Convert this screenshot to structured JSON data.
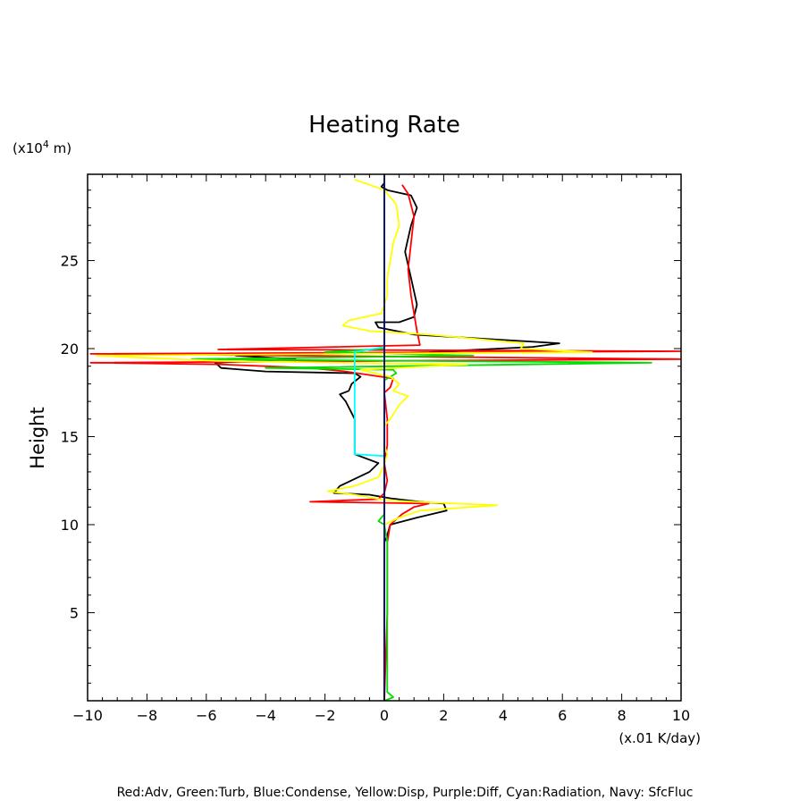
{
  "chart_data": {
    "type": "line",
    "title": "Heating Rate",
    "ylabel": "Height",
    "y_unit_prefix": "(x10",
    "y_unit_exp": "4",
    "y_unit_suffix": " m)",
    "x_unit": "(x.01 K/day)",
    "xlim": [
      -10,
      10
    ],
    "ylim": [
      0,
      29.9
    ],
    "x_ticks": [
      -10,
      -8,
      -6,
      -4,
      -2,
      0,
      2,
      4,
      6,
      8,
      10
    ],
    "x_tick_labels": [
      "−10",
      "−8",
      "−6",
      "−4",
      "−2",
      "0",
      "2",
      "4",
      "6",
      "8",
      "10"
    ],
    "y_ticks": [
      5,
      10,
      15,
      20,
      25
    ],
    "y_tick_labels": [
      "5",
      "10",
      "15",
      "20",
      "25"
    ],
    "legend_text": "Red:Adv, Green:Turb, Blue:Condense, Yellow:Disp, Purple:Diff, Cyan:Radiation, Navy: SfcFluc",
    "series": [
      {
        "color": "#000000",
        "points": [
          [
            0,
            0
          ],
          [
            0,
            9
          ],
          [
            0.1,
            9.4
          ],
          [
            0.2,
            10
          ],
          [
            1.1,
            10.4
          ],
          [
            2.1,
            10.8
          ],
          [
            2,
            11.2
          ],
          [
            1.2,
            11.3
          ],
          [
            0.2,
            11.5
          ],
          [
            -0.5,
            11.7
          ],
          [
            -1.7,
            11.8
          ],
          [
            -1.5,
            12.2
          ],
          [
            -0.5,
            13
          ],
          [
            -0.2,
            13.5
          ],
          [
            -1,
            14
          ],
          [
            -1,
            15
          ],
          [
            -1,
            16
          ],
          [
            -1.3,
            17
          ],
          [
            -1.5,
            17.4
          ],
          [
            -1.2,
            17.6
          ],
          [
            -1.1,
            18
          ],
          [
            -0.8,
            18.4
          ],
          [
            -1,
            18.6
          ],
          [
            -4,
            18.7
          ],
          [
            -5.5,
            18.9
          ],
          [
            -5.7,
            19.2
          ],
          [
            -3,
            19.4
          ],
          [
            -5,
            19.6
          ],
          [
            1.5,
            19.8
          ],
          [
            5,
            20.1
          ],
          [
            5.9,
            20.3
          ],
          [
            1,
            20.8
          ],
          [
            -0.2,
            21.2
          ],
          [
            -0.3,
            21.5
          ],
          [
            0.5,
            21.5
          ],
          [
            1,
            21.8
          ],
          [
            1.1,
            22.5
          ],
          [
            0.9,
            24
          ],
          [
            0.7,
            25.5
          ],
          [
            0.9,
            27
          ],
          [
            1.1,
            28
          ],
          [
            0.9,
            28.7
          ],
          [
            0.1,
            29
          ],
          [
            -0.1,
            29.2
          ],
          [
            0,
            29.4
          ]
        ]
      },
      {
        "color": "#ff0000",
        "points": [
          [
            0,
            0
          ],
          [
            0.1,
            5
          ],
          [
            0.1,
            9
          ],
          [
            0.2,
            10
          ],
          [
            0.6,
            10.6
          ],
          [
            1,
            11
          ],
          [
            1.5,
            11.2
          ],
          [
            -2.5,
            11.3
          ],
          [
            -0.2,
            11.45
          ],
          [
            0,
            11.8
          ],
          [
            0.1,
            12.5
          ],
          [
            0,
            13.5
          ],
          [
            0.1,
            14.5
          ],
          [
            0.1,
            16
          ],
          [
            0,
            17.5
          ],
          [
            0.2,
            17.8
          ],
          [
            0.3,
            18.3
          ],
          [
            -1.3,
            18.7
          ],
          [
            -2.5,
            18.9
          ],
          [
            -5.5,
            19.1
          ],
          [
            -9.9,
            19.2
          ],
          [
            10,
            19.4
          ],
          [
            -9.9,
            19.7
          ],
          [
            10,
            19.85
          ],
          [
            -5.6,
            19.95
          ],
          [
            1.2,
            20.2
          ],
          [
            1.1,
            21
          ],
          [
            1,
            22
          ],
          [
            0.9,
            23
          ],
          [
            0.8,
            24.5
          ],
          [
            0.9,
            26
          ],
          [
            1,
            27.5
          ],
          [
            0.8,
            28.8
          ],
          [
            0.6,
            29.3
          ]
        ]
      },
      {
        "color": "#00dd00",
        "points": [
          [
            0,
            0
          ],
          [
            0.3,
            0.2
          ],
          [
            0.1,
            0.5
          ],
          [
            0.1,
            9
          ],
          [
            0,
            10
          ],
          [
            -0.2,
            10.2
          ],
          [
            0,
            10.6
          ],
          [
            0,
            11.2
          ],
          [
            0,
            18.2
          ],
          [
            0.4,
            18.6
          ],
          [
            0.3,
            18.8
          ],
          [
            -4,
            18.9
          ],
          [
            9,
            19.2
          ],
          [
            -6.5,
            19.4
          ],
          [
            3,
            19.6
          ],
          [
            -2,
            19.8
          ],
          [
            0,
            20
          ],
          [
            0,
            29.4
          ]
        ]
      },
      {
        "color": "#ffff00",
        "points": [
          [
            0,
            10
          ],
          [
            0.5,
            10.4
          ],
          [
            1.2,
            10.8
          ],
          [
            3.8,
            11.1
          ],
          [
            1,
            11.3
          ],
          [
            0,
            11.4
          ],
          [
            -1,
            11.7
          ],
          [
            -1.9,
            11.9
          ],
          [
            -1,
            12.2
          ],
          [
            -0.2,
            12.7
          ],
          [
            0,
            13.4
          ],
          [
            0.1,
            14
          ],
          [
            0,
            14.5
          ],
          [
            0,
            15.6
          ],
          [
            0.2,
            16
          ],
          [
            0.5,
            16.8
          ],
          [
            0.8,
            17.3
          ],
          [
            0.3,
            17.6
          ],
          [
            0.5,
            18
          ],
          [
            0.2,
            18.4
          ],
          [
            -0.8,
            18.8
          ],
          [
            2.8,
            19.1
          ],
          [
            -5.6,
            19.3
          ],
          [
            -9.7,
            19.6
          ],
          [
            7,
            19.8
          ],
          [
            4.6,
            20
          ],
          [
            4.7,
            20.3
          ],
          [
            1.5,
            20.8
          ],
          [
            -0.5,
            21
          ],
          [
            -1.4,
            21.3
          ],
          [
            -1.2,
            21.6
          ],
          [
            -0.1,
            22
          ],
          [
            0.1,
            23
          ],
          [
            0.1,
            24
          ],
          [
            0.2,
            25
          ],
          [
            0.3,
            26
          ],
          [
            0.5,
            27
          ],
          [
            0.4,
            28.2
          ],
          [
            0,
            29
          ],
          [
            -1,
            29.6
          ]
        ]
      },
      {
        "color": "#00ffff",
        "points": [
          [
            0,
            13.9
          ],
          [
            -1,
            14
          ],
          [
            -1,
            19.8
          ],
          [
            0,
            20.1
          ]
        ]
      },
      {
        "color": "#000080",
        "points": [
          [
            0,
            0
          ],
          [
            0,
            29.9
          ]
        ]
      }
    ]
  }
}
